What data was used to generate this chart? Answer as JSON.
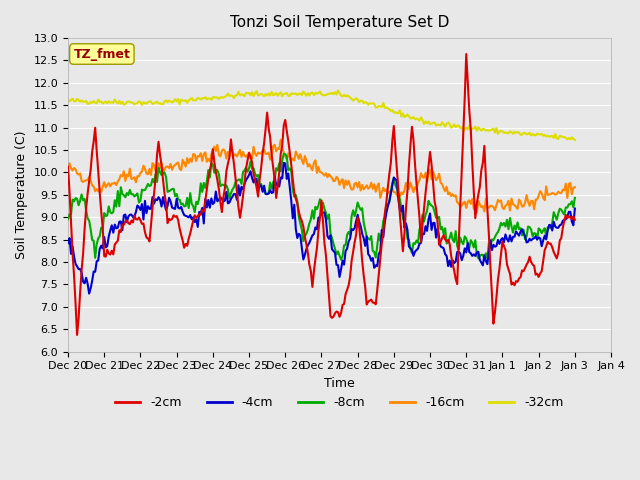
{
  "title": "Tonzi Soil Temperature Set D",
  "xlabel": "Time",
  "ylabel": "Soil Temperature (C)",
  "ylim": [
    6.0,
    13.0
  ],
  "yticks": [
    6.0,
    6.5,
    7.0,
    7.5,
    8.0,
    8.5,
    9.0,
    9.5,
    10.0,
    10.5,
    11.0,
    11.5,
    12.0,
    12.5,
    13.0
  ],
  "bg_color": "#e8e8e8",
  "plot_bg_color": "#e8e8e8",
  "legend_label": "TZ_fmet",
  "legend_box_color": "#ffff99",
  "legend_text_color": "#990000",
  "colors": {
    "-2cm": "#dd0000",
    "-4cm": "#0000cc",
    "-8cm": "#00aa00",
    "-16cm": "#ff8800",
    "-32cm": "#dddd00"
  },
  "line_width": 1.5,
  "n_points": 336,
  "x_tick_labels": [
    "Dec 20",
    "Dec 21",
    "Dec 22",
    "Dec 23",
    "Dec 24",
    "Dec 25",
    "Dec 26",
    "Dec 27",
    "Dec 28",
    "Dec 29",
    "Dec 30",
    "Dec 31",
    "Jan 1",
    "Jan 2",
    "Jan 3",
    "Jan 4"
  ],
  "x_tick_positions": [
    0,
    24,
    48,
    72,
    96,
    120,
    144,
    168,
    192,
    216,
    240,
    264,
    288,
    312,
    336,
    360
  ]
}
